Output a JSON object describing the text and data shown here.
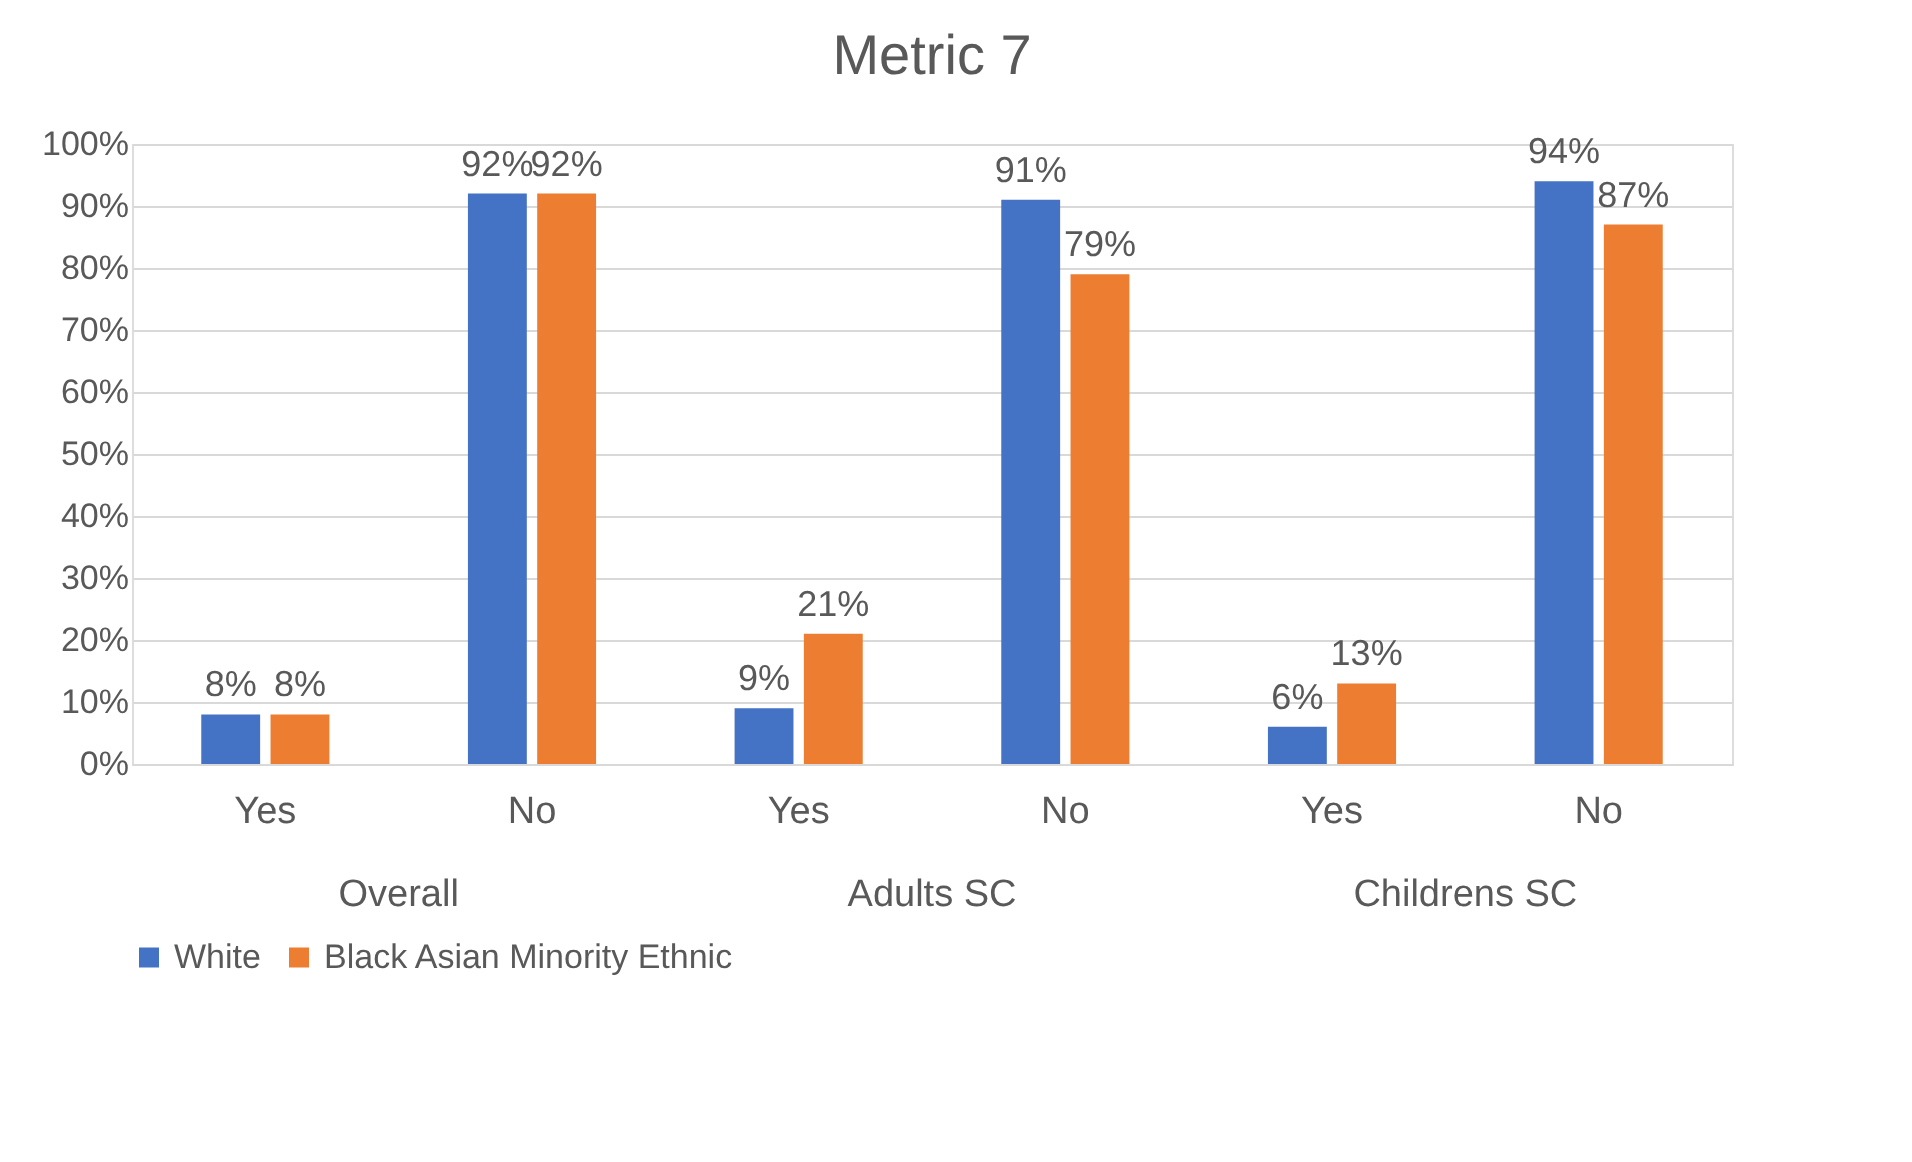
{
  "chart_data": {
    "type": "bar",
    "title": "Metric 7",
    "categories": [
      "Yes",
      "No",
      "Yes",
      "No",
      "Yes",
      "No"
    ],
    "annotations": [
      "Overall",
      "Adults SC",
      "Childrens SC"
    ],
    "series": [
      {
        "name": "White",
        "color": "#4472c4",
        "values": [
          8,
          92,
          9,
          91,
          6,
          94
        ],
        "value_labels": [
          "8%",
          "92%",
          "9%",
          "91%",
          "6%",
          "94%"
        ]
      },
      {
        "name": "Black Asian Minority Ethnic",
        "color": "#ed7d31",
        "values": [
          8,
          92,
          21,
          79,
          13,
          87
        ],
        "value_labels": [
          "8%",
          "92%",
          "21%",
          "79%",
          "13%",
          "87%"
        ]
      }
    ],
    "ylim": [
      0,
      100
    ],
    "yticks": [
      {
        "value": 0,
        "label": "0%"
      },
      {
        "value": 10,
        "label": "10%"
      },
      {
        "value": 20,
        "label": "20%"
      },
      {
        "value": 30,
        "label": "30%"
      },
      {
        "value": 40,
        "label": "40%"
      },
      {
        "value": 50,
        "label": "50%"
      },
      {
        "value": 60,
        "label": "60%"
      },
      {
        "value": 70,
        "label": "70%"
      },
      {
        "value": 80,
        "label": "80%"
      },
      {
        "value": 90,
        "label": "90%"
      },
      {
        "value": 100,
        "label": "100%"
      }
    ],
    "grid": "y",
    "legend": "bottom"
  }
}
